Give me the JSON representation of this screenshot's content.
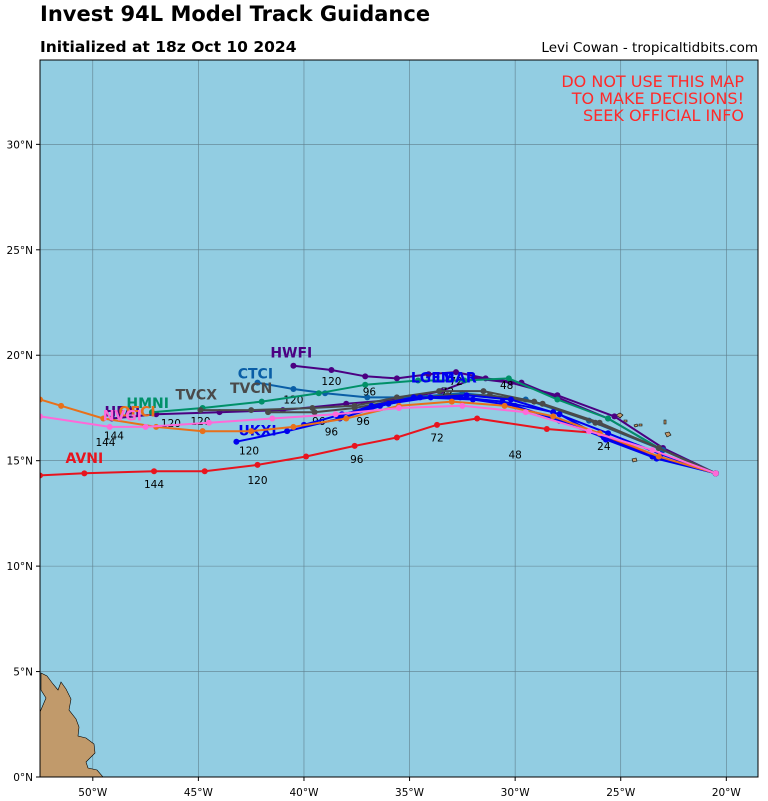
{
  "header": {
    "title": "Invest 94L Model Track Guidance",
    "subtitle": "Initialized at 18z Oct 10 2024",
    "credit": "Levi Cowan - tropicaltidbits.com"
  },
  "warning": [
    "DO NOT USE THIS MAP",
    "TO MAKE DECISIONS!",
    "SEEK OFFICIAL INFO"
  ],
  "colors": {
    "ocean": "#92cde2",
    "land": "#c19a6b",
    "grid": "#5f7f8c",
    "warning": "#ff2a2a"
  },
  "map": {
    "lon_range": [
      -52.5,
      -18.5
    ],
    "lat_range": [
      0,
      34
    ],
    "lon_ticks": [
      {
        "value": -50,
        "label": "50°W"
      },
      {
        "value": -45,
        "label": "45°W"
      },
      {
        "value": -40,
        "label": "40°W"
      },
      {
        "value": -35,
        "label": "35°W"
      },
      {
        "value": -30,
        "label": "30°W"
      },
      {
        "value": -25,
        "label": "25°W"
      },
      {
        "value": -20,
        "label": "20°W"
      }
    ],
    "lat_ticks": [
      {
        "value": 0,
        "label": "0°N"
      },
      {
        "value": 5,
        "label": "5°N"
      },
      {
        "value": 10,
        "label": "10°N"
      },
      {
        "value": 15,
        "label": "15°N"
      },
      {
        "value": 20,
        "label": "20°N"
      },
      {
        "value": 25,
        "label": "25°N"
      },
      {
        "value": 30,
        "label": "30°N"
      }
    ]
  },
  "tracks": [
    {
      "name": "AVNI",
      "color": "#e8141e",
      "label_pos": [
        -50.4,
        14.9
      ],
      "points": [
        [
          -20.5,
          14.4
        ],
        [
          -23.5,
          15.2
        ],
        [
          -26,
          16.3
        ],
        [
          -28.5,
          16.5
        ],
        [
          -31.8,
          17.0
        ],
        [
          -33.7,
          16.7
        ],
        [
          -35.6,
          16.1
        ],
        [
          -37.6,
          15.7
        ],
        [
          -39.9,
          15.2
        ],
        [
          -42.2,
          14.8
        ],
        [
          -44.7,
          14.5
        ],
        [
          -47.1,
          14.5
        ],
        [
          -50.4,
          14.4
        ],
        [
          -52.5,
          14.3
        ]
      ],
      "hours": [
        {
          "text": "24",
          "pos": [
            -25.8,
            15.5
          ]
        },
        {
          "text": "48",
          "pos": [
            -30,
            15.1
          ]
        },
        {
          "text": "72",
          "pos": [
            -33.7,
            15.9
          ]
        },
        {
          "text": "96",
          "pos": [
            -37.5,
            14.9
          ]
        },
        {
          "text": "120",
          "pos": [
            -42.2,
            13.9
          ]
        },
        {
          "text": "144",
          "pos": [
            -47.1,
            13.7
          ]
        }
      ]
    },
    {
      "name": "HFAI",
      "color": "#4b0082",
      "label_pos": [
        -48.6,
        17.1
      ],
      "points": [
        [
          -20.5,
          14.4
        ],
        [
          -23.0,
          15.6
        ],
        [
          -25.3,
          17.1
        ],
        [
          -28.0,
          18.1
        ],
        [
          -30.2,
          18.7
        ],
        [
          -31.9,
          18.9
        ],
        [
          -33.5,
          18.3
        ],
        [
          -35.5,
          17.9
        ],
        [
          -38,
          17.7
        ],
        [
          -41,
          17.4
        ],
        [
          -44,
          17.3
        ],
        [
          -47,
          17.2
        ],
        [
          -49.1,
          17.0
        ]
      ],
      "hours": []
    },
    {
      "name": "HWFI",
      "color": "#4b0082",
      "label_pos": [
        -40.6,
        19.9
      ],
      "points": [
        [
          -20.5,
          14.4
        ],
        [
          -23.2,
          15.6
        ],
        [
          -25.6,
          17.0
        ],
        [
          -28.0,
          18.0
        ],
        [
          -29.7,
          18.7
        ],
        [
          -31.4,
          18.9
        ],
        [
          -32.8,
          19.2
        ],
        [
          -34.1,
          19.1
        ],
        [
          -35.6,
          18.9
        ],
        [
          -37.1,
          19.0
        ],
        [
          -38.7,
          19.3
        ],
        [
          -40.5,
          19.5
        ]
      ],
      "hours": [
        {
          "text": "48",
          "pos": [
            -30.4,
            18.4
          ]
        },
        {
          "text": "72",
          "pos": [
            -32.8,
            18.6
          ]
        },
        {
          "text": "120",
          "pos": [
            -38.7,
            18.6
          ]
        }
      ]
    },
    {
      "name": "CTCI",
      "color": "#0a5ea6",
      "label_pos": [
        -42.3,
        18.9
      ],
      "points": [
        [
          -20.5,
          14.4
        ],
        [
          -23,
          15.5
        ],
        [
          -26.5,
          16.9
        ],
        [
          -29.5,
          17.9
        ],
        [
          -32.5,
          18.2
        ],
        [
          -35,
          18.0
        ],
        [
          -37,
          18.0
        ],
        [
          -39,
          18.2
        ],
        [
          -40.5,
          18.4
        ],
        [
          -42.2,
          18.7
        ]
      ],
      "hours": [
        {
          "text": "120",
          "pos": [
            -40.5,
            17.7
          ]
        }
      ]
    },
    {
      "name": "HMNI",
      "color": "#009068",
      "label_pos": [
        -47.4,
        17.5
      ],
      "points": [
        [
          -20.5,
          14.4
        ],
        [
          -23.2,
          15.6
        ],
        [
          -25.6,
          17.0
        ],
        [
          -28.0,
          17.9
        ],
        [
          -30.3,
          18.9
        ],
        [
          -32.4,
          18.8
        ],
        [
          -34.6,
          18.8
        ],
        [
          -37.1,
          18.6
        ],
        [
          -39.3,
          18.2
        ],
        [
          -42.0,
          17.8
        ],
        [
          -44.8,
          17.5
        ],
        [
          -47.2,
          17.3
        ]
      ],
      "hours": [
        {
          "text": "96",
          "pos": [
            -36.9,
            18.1
          ]
        },
        {
          "text": "72",
          "pos": [
            -33.2,
            18.1
          ]
        }
      ]
    },
    {
      "name": "TVCX",
      "color": "#4a4a4a",
      "label_pos": [
        -45.1,
        17.9
      ],
      "points": [
        [
          -20.5,
          14.4
        ],
        [
          -23.2,
          15.6
        ],
        [
          -26.2,
          16.8
        ],
        [
          -29.1,
          17.8
        ],
        [
          -31.5,
          18.3
        ],
        [
          -33.6,
          18.3
        ],
        [
          -35.6,
          18.0
        ],
        [
          -37.6,
          17.6
        ],
        [
          -39.6,
          17.5
        ],
        [
          -42.5,
          17.4
        ],
        [
          -44.9,
          17.4
        ]
      ],
      "hours": [
        {
          "text": "120",
          "pos": [
            -44.9,
            16.7
          ]
        }
      ]
    },
    {
      "name": "TVCN",
      "color": "#4a4a4a",
      "label_pos": [
        -42.5,
        18.2
      ],
      "points": [
        [
          -20.5,
          14.4
        ],
        [
          -23.2,
          15.6
        ],
        [
          -26.0,
          16.8
        ],
        [
          -28.7,
          17.7
        ],
        [
          -31.2,
          18.1
        ],
        [
          -33.2,
          18.1
        ],
        [
          -35.4,
          17.9
        ],
        [
          -37.6,
          17.5
        ],
        [
          -39.5,
          17.3
        ],
        [
          -41.7,
          17.3
        ]
      ],
      "hours": [
        {
          "text": "96",
          "pos": [
            -39.3,
            16.7
          ]
        }
      ]
    },
    {
      "name": "LGEM",
      "color": "#0000ee",
      "label_pos": [
        -33.9,
        18.7
      ],
      "points": [
        [
          -20.5,
          14.4
        ],
        [
          -23.3,
          15.1
        ],
        [
          -25.7,
          16.0
        ],
        [
          -27.9,
          17.2
        ],
        [
          -30.2,
          17.9
        ],
        [
          -32.3,
          18.1
        ],
        [
          -34.0,
          18.0
        ],
        [
          -36.0,
          17.7
        ],
        [
          -38.3,
          17.0
        ],
        [
          -40.8,
          16.4
        ],
        [
          -43.2,
          15.9
        ]
      ],
      "hours": [
        {
          "text": "120",
          "pos": [
            -42.6,
            15.3
          ]
        },
        {
          "text": "96",
          "pos": [
            -37.2,
            16.7
          ]
        }
      ]
    },
    {
      "name": "LBAR",
      "color": "#0000ee",
      "label_pos": [
        -32.8,
        18.7
      ],
      "points": [
        [
          -20.5,
          14.4
        ],
        [
          -23.1,
          15.3
        ],
        [
          -25.6,
          16.3
        ],
        [
          -28.2,
          17.3
        ],
        [
          -30.6,
          17.8
        ],
        [
          -32.6,
          18.0
        ],
        [
          -34.8,
          18.0
        ],
        [
          -36.8,
          17.6
        ],
        [
          -38.4,
          17.1
        ]
      ],
      "hours": []
    },
    {
      "name": "UKXI",
      "color": "#0000ee",
      "label_pos": [
        -42.2,
        16.2
      ],
      "points": [
        [
          -20.5,
          14.4
        ],
        [
          -23.5,
          15.2
        ],
        [
          -25.8,
          16.1
        ],
        [
          -27.9,
          16.9
        ],
        [
          -30.0,
          17.6
        ],
        [
          -32.0,
          17.9
        ],
        [
          -34.5,
          18.0
        ],
        [
          -36.4,
          17.6
        ],
        [
          -38.2,
          17.2
        ],
        [
          -40.0,
          16.7
        ]
      ],
      "hours": [
        {
          "text": "96",
          "pos": [
            -38.7,
            16.2
          ]
        }
      ]
    },
    {
      "name": "OFCI",
      "color": "#e8701a",
      "label_pos": [
        -47.9,
        17.1
      ],
      "points": [
        [
          -20.5,
          14.4
        ],
        [
          -23.2,
          15.2
        ],
        [
          -26.0,
          16.3
        ],
        [
          -28.2,
          17.1
        ],
        [
          -30.5,
          17.6
        ],
        [
          -33.0,
          17.8
        ],
        [
          -35.5,
          17.6
        ],
        [
          -38.0,
          17.0
        ],
        [
          -40.5,
          16.6
        ],
        [
          -42.5,
          16.4
        ],
        [
          -44.8,
          16.4
        ],
        [
          -47.0,
          16.6
        ],
        [
          -49.5,
          17.0
        ],
        [
          -51.5,
          17.6
        ],
        [
          -52.5,
          17.9
        ]
      ],
      "hours": [
        {
          "text": "120",
          "pos": [
            -46.3,
            16.6
          ]
        },
        {
          "text": "144",
          "pos": [
            -49.0,
            16.0
          ]
        }
      ]
    },
    {
      "name": "NVGI",
      "color": "#ff69d8",
      "label_pos": [
        -48.6,
        16.9
      ],
      "points": [
        [
          -20.5,
          14.4
        ],
        [
          -23.5,
          15.5
        ],
        [
          -26.5,
          16.4
        ],
        [
          -29.5,
          17.3
        ],
        [
          -32.5,
          17.6
        ],
        [
          -35.5,
          17.5
        ],
        [
          -38.5,
          17.2
        ],
        [
          -41.5,
          17.0
        ],
        [
          -44.5,
          16.8
        ],
        [
          -47.5,
          16.6
        ],
        [
          -49.2,
          16.6
        ],
        [
          -52.5,
          17.1
        ]
      ],
      "hours": [
        {
          "text": "144",
          "pos": [
            -49.4,
            15.7
          ]
        }
      ]
    }
  ]
}
